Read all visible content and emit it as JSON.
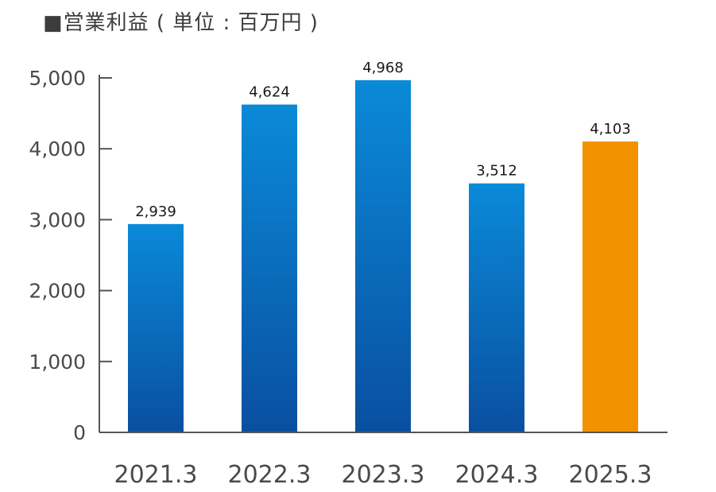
{
  "chart_data": {
    "type": "bar",
    "title": "■営業利益 ( 単位 : 百万円 )",
    "categories": [
      "2021.3",
      "2022.3",
      "2023.3",
      "2024.3",
      "2025.3"
    ],
    "values": [
      2939,
      4624,
      4968,
      3512,
      4103
    ],
    "value_labels": [
      "2,939",
      "4,624",
      "4,968",
      "3,512",
      "4,103"
    ],
    "ylim": [
      0,
      5000
    ],
    "yticks": [
      0,
      1000,
      2000,
      3000,
      4000,
      5000
    ],
    "ytick_labels": [
      "0",
      "1,000",
      "2,000",
      "3,000",
      "4,000",
      "5,000"
    ],
    "xlabel": "",
    "ylabel": "",
    "grid": false,
    "colors": {
      "bar_gradient_top": "#0a8ad8",
      "bar_gradient_bottom": "#0a4fa0",
      "highlight_bar": "#f39200",
      "axis": "#555555"
    },
    "highlight_index": 4
  }
}
